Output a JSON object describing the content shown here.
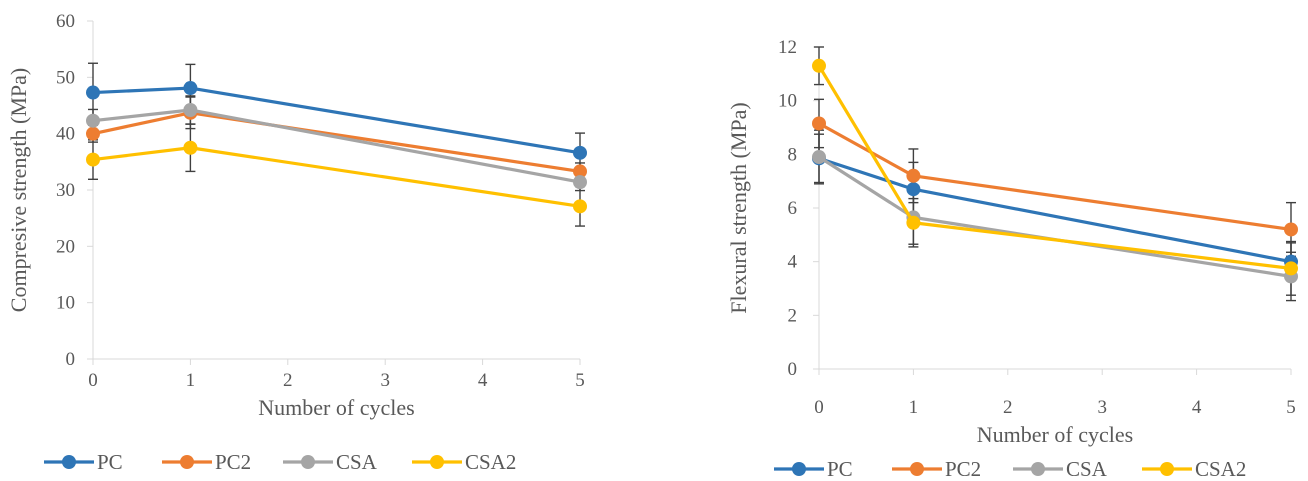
{
  "chart_data": [
    {
      "type": "line",
      "xlabel": "Number of cycles",
      "ylabel": "Compresive strength (MPa)",
      "x": [
        0,
        1,
        5
      ],
      "xlim": [
        0,
        5
      ],
      "ylim": [
        0,
        60
      ],
      "xticks": [
        "0",
        "1",
        "2",
        "3",
        "4",
        "5"
      ],
      "yticks": [
        "0",
        "10",
        "20",
        "30",
        "40",
        "50",
        "60"
      ],
      "grid": false,
      "legend_position": "bottom",
      "series": [
        {
          "name": "PC",
          "color": "#2E75B6",
          "values": [
            47.3,
            48.1,
            36.6
          ],
          "errors": [
            5.2,
            4.2,
            3.5
          ]
        },
        {
          "name": "PC2",
          "color": "#ED7D31",
          "values": [
            40.0,
            43.7,
            33.3
          ],
          "errors": [
            1.5,
            2.8,
            1.5
          ]
        },
        {
          "name": "CSA",
          "color": "#A5A5A5",
          "values": [
            42.3,
            44.2,
            31.4
          ],
          "errors": [
            2.0,
            2.5,
            1.5
          ]
        },
        {
          "name": "CSA2",
          "color": "#FFC000",
          "values": [
            35.4,
            37.5,
            27.1
          ],
          "errors": [
            3.5,
            4.2,
            3.5
          ]
        }
      ]
    },
    {
      "type": "line",
      "xlabel": "Number of cycles",
      "ylabel": "Flexural strength (MPa)",
      "x": [
        0,
        1,
        5
      ],
      "xlim": [
        0,
        5
      ],
      "ylim": [
        0,
        12
      ],
      "xticks": [
        "0",
        "1",
        "2",
        "3",
        "4",
        "5"
      ],
      "yticks": [
        "0",
        "2",
        "4",
        "6",
        "8",
        "10",
        "12"
      ],
      "grid": false,
      "legend_position": "bottom",
      "series": [
        {
          "name": "PC",
          "color": "#2E75B6",
          "values": [
            7.85,
            6.7,
            4.0
          ],
          "errors": [
            0.9,
            1.0,
            0.7
          ]
        },
        {
          "name": "PC2",
          "color": "#ED7D31",
          "values": [
            9.15,
            7.2,
            5.2
          ],
          "errors": [
            0.9,
            1.0,
            1.0
          ]
        },
        {
          "name": "CSA",
          "color": "#A5A5A5",
          "values": [
            7.9,
            5.65,
            3.45
          ],
          "errors": [
            1.0,
            1.0,
            0.9
          ]
        },
        {
          "name": "CSA2",
          "color": "#FFC000",
          "values": [
            11.3,
            5.45,
            3.75
          ],
          "errors": [
            0.7,
            0.9,
            1.0
          ]
        }
      ]
    }
  ]
}
